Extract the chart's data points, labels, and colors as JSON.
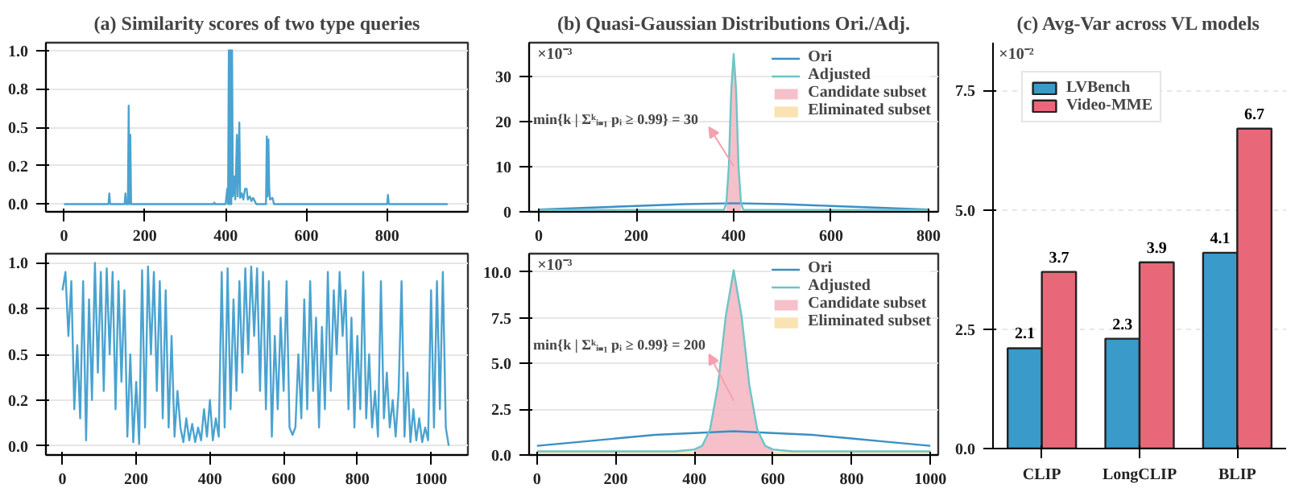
{
  "chart_data": [
    {
      "type": "line",
      "title": "(a) Similarity scores of two type queries",
      "xlim": [
        -45,
        1000
      ],
      "xticks": [
        0,
        200,
        400,
        600,
        800
      ],
      "ylim": [
        -0.05,
        1.05
      ],
      "yticks": [
        {
          "value": 0,
          "label": "0.0"
        },
        {
          "value": 0.25,
          "label": "0.2"
        },
        {
          "value": 0.5,
          "label": "0.5"
        },
        {
          "value": 0.75,
          "label": "0.8"
        },
        {
          "value": 1.0,
          "label": "1.0"
        }
      ],
      "grid": "y",
      "series": [
        {
          "color": "#4aa3d0",
          "x": [
            0,
            110,
            112,
            114,
            150,
            152,
            154,
            158,
            160,
            162,
            164,
            166,
            370,
            372,
            374,
            400,
            402,
            404,
            406,
            408,
            410,
            412,
            414,
            416,
            418,
            422,
            424,
            428,
            430,
            434,
            436,
            440,
            444,
            448,
            452,
            455,
            460,
            464,
            468,
            472,
            476,
            500,
            502,
            504,
            506,
            508,
            510,
            516,
            520,
            800,
            802,
            804,
            950
          ],
          "values": [
            0,
            0,
            0.07,
            0,
            0,
            0.07,
            0,
            0,
            0.64,
            0,
            0.45,
            0,
            0,
            0.01,
            0,
            0,
            0.05,
            0.1,
            0,
            1.0,
            0,
            1.0,
            0,
            1.0,
            0.05,
            0.18,
            0.03,
            0.45,
            0.05,
            0.53,
            0.04,
            0.07,
            0.03,
            0.1,
            0.1,
            0.03,
            0.05,
            0.02,
            0.04,
            0.02,
            0,
            0,
            0.44,
            0.05,
            0.42,
            0.1,
            0.03,
            0.04,
            0,
            0,
            0.06,
            0,
            0
          ]
        }
      ]
    },
    {
      "type": "line",
      "xlim": [
        -45,
        1100
      ],
      "xticks": [
        0,
        200,
        400,
        600,
        800,
        1000
      ],
      "ylim": [
        -0.05,
        1.05
      ],
      "yticks": [
        {
          "value": 0,
          "label": "0.0"
        },
        {
          "value": 0.25,
          "label": "0.2"
        },
        {
          "value": 0.5,
          "label": "0.5"
        },
        {
          "value": 0.75,
          "label": "0.8"
        },
        {
          "value": 1.0,
          "label": "1.0"
        }
      ],
      "grid": "y",
      "series": [
        {
          "color": "#4aa3d0",
          "x": [
            0,
            8,
            16,
            24,
            32,
            40,
            48,
            56,
            64,
            72,
            80,
            88,
            96,
            104,
            112,
            120,
            128,
            136,
            144,
            152,
            160,
            168,
            176,
            184,
            192,
            200,
            208,
            216,
            224,
            232,
            240,
            248,
            256,
            264,
            272,
            280,
            288,
            296,
            304,
            312,
            320,
            328,
            336,
            344,
            352,
            360,
            368,
            376,
            384,
            392,
            400,
            408,
            416,
            424,
            432,
            440,
            448,
            456,
            464,
            472,
            480,
            488,
            496,
            504,
            512,
            520,
            528,
            536,
            544,
            552,
            560,
            568,
            576,
            584,
            592,
            600,
            608,
            616,
            624,
            632,
            640,
            648,
            656,
            664,
            672,
            680,
            688,
            696,
            704,
            712,
            720,
            728,
            736,
            744,
            752,
            760,
            768,
            776,
            784,
            792,
            800,
            808,
            816,
            824,
            832,
            840,
            848,
            856,
            864,
            872,
            880,
            888,
            896,
            904,
            912,
            920,
            928,
            936,
            944,
            952,
            960,
            968,
            976,
            984,
            992,
            1000,
            1008,
            1016,
            1024,
            1032,
            1040,
            1048
          ],
          "values": [
            0.85,
            0.95,
            0.6,
            0.9,
            0.2,
            0.55,
            0.15,
            0.9,
            0.03,
            0.8,
            0.25,
            1.0,
            0.4,
            0.95,
            0.3,
            0.97,
            0.5,
            0.95,
            0.2,
            0.9,
            0.35,
            0.85,
            0.05,
            0.5,
            0.02,
            0.35,
            0.01,
            0.96,
            0.1,
            0.98,
            0.5,
            0.95,
            0.3,
            0.9,
            0.15,
            0.85,
            0.1,
            0.6,
            0.05,
            0.3,
            0.1,
            0.02,
            0.15,
            0.03,
            0.12,
            0.02,
            0.1,
            0.03,
            0.2,
            0.05,
            0.25,
            0.03,
            0.15,
            0.05,
            0.95,
            0.1,
            0.97,
            0.2,
            0.8,
            0.3,
            0.9,
            0.4,
            0.97,
            0.5,
            0.98,
            0.6,
            0.97,
            0.3,
            0.95,
            0.2,
            0.9,
            0.05,
            0.6,
            0.2,
            0.7,
            0.3,
            0.9,
            0.1,
            0.06,
            0.1,
            0.5,
            0.15,
            0.8,
            0.2,
            0.9,
            0.3,
            0.7,
            0.1,
            0.65,
            0.2,
            0.95,
            0.3,
            0.85,
            0.5,
            0.95,
            0.6,
            0.85,
            0.2,
            0.7,
            0.1,
            0.6,
            0.2,
            0.95,
            0.15,
            0.5,
            0.1,
            0.3,
            0.05,
            0.9,
            0.15,
            0.4,
            0.1,
            0.25,
            0.05,
            0.3,
            0.9,
            0.05,
            0.4,
            0.02,
            0.2,
            0.03,
            0.15,
            0.02,
            0.1,
            0.03,
            0.85,
            0.1,
            0.9,
            0.2,
            0.95,
            0.1,
            0.0
          ]
        }
      ]
    },
    {
      "type": "line",
      "title": "(b) Quasi-Gaussian Distributions Ori./Adj.",
      "xlim": [
        -20,
        820
      ],
      "xticks": [
        0,
        200,
        400,
        600,
        800
      ],
      "ylim": [
        0,
        37.5
      ],
      "yticks": [
        0,
        10,
        20,
        30
      ],
      "grid": "y",
      "legend": "top right",
      "annotations": [
        "×10⁻³",
        "min{k | Σᵏᵢ₌₁ pᵢ ≥ 0.99} = 30"
      ],
      "series": [
        {
          "name": "Ori",
          "type": "line",
          "color": "#3b8fc4",
          "x": [
            0,
            100,
            200,
            300,
            400,
            500,
            600,
            700,
            800
          ],
          "values": [
            0.5,
            0.9,
            1.3,
            1.7,
            1.9,
            1.7,
            1.3,
            0.9,
            0.5
          ]
        },
        {
          "name": "Adjusted",
          "type": "line",
          "color": "#6ec4c7",
          "x": [
            0,
            380,
            385,
            390,
            395,
            400,
            405,
            410,
            415,
            420,
            800
          ],
          "values": [
            0.4,
            0.4,
            2,
            10,
            27,
            35,
            27,
            10,
            2,
            0.4,
            0.4
          ]
        },
        {
          "name": "Candidate subset",
          "type": "area",
          "color": "#f4b9c3",
          "x": [
            385,
            390,
            395,
            400,
            405,
            410,
            415
          ],
          "values": [
            2,
            10,
            27,
            35,
            27,
            10,
            2
          ]
        },
        {
          "name": "Eliminated subset",
          "type": "area",
          "color": "#f9e2b1",
          "x": [
            0,
            385,
            400,
            415,
            800
          ],
          "values": [
            0.4,
            0.4,
            null,
            0.4,
            0.4
          ]
        }
      ]
    },
    {
      "type": "line",
      "xlim": [
        -20,
        1020
      ],
      "xticks": [
        0,
        200,
        400,
        600,
        800,
        1000
      ],
      "ylim": [
        0,
        11
      ],
      "yticks": [
        {
          "value": 0,
          "label": "0.0"
        },
        {
          "value": 2.5,
          "label": "2.5"
        },
        {
          "value": 5,
          "label": "5.0"
        },
        {
          "value": 7.5,
          "label": "7.5"
        },
        {
          "value": 10,
          "label": "10.0"
        }
      ],
      "grid": "y",
      "legend": "top right",
      "annotations": [
        "×10⁻³",
        "min{k | Σᵏᵢ₌₁ pᵢ ≥ 0.99} = 200"
      ],
      "series": [
        {
          "name": "Ori",
          "type": "line",
          "color": "#3b8fc4",
          "x": [
            0,
            100,
            200,
            300,
            400,
            500,
            600,
            700,
            800,
            900,
            1000
          ],
          "values": [
            0.5,
            0.7,
            0.9,
            1.1,
            1.2,
            1.3,
            1.2,
            1.1,
            0.9,
            0.7,
            0.5
          ]
        },
        {
          "name": "Adjusted",
          "type": "line",
          "color": "#6ec4c7",
          "x": [
            0,
            350,
            400,
            420,
            440,
            460,
            480,
            500,
            520,
            540,
            560,
            580,
            600,
            650,
            1000
          ],
          "values": [
            0.2,
            0.2,
            0.3,
            0.5,
            1.4,
            3.8,
            7.6,
            10.1,
            7.6,
            3.8,
            1.4,
            0.5,
            0.3,
            0.2,
            0.2
          ]
        },
        {
          "name": "Candidate subset",
          "type": "area",
          "color": "#f4b9c3",
          "x": [
            400,
            420,
            440,
            460,
            480,
            500,
            520,
            540,
            560,
            580,
            600
          ],
          "values": [
            0.3,
            0.5,
            1.4,
            3.8,
            7.6,
            10.1,
            7.6,
            3.8,
            1.4,
            0.5,
            0.3
          ]
        },
        {
          "name": "Eliminated subset",
          "type": "area",
          "color": "#f9e2b1",
          "x": [
            0,
            400,
            500,
            600,
            1000
          ],
          "values": [
            0.2,
            0.2,
            null,
            0.2,
            0.2
          ]
        }
      ]
    },
    {
      "type": "bar",
      "title": "(c) Avg-Var across VL models",
      "categories": [
        "CLIP",
        "LongCLIP",
        "BLIP"
      ],
      "ylim": [
        0,
        8.5
      ],
      "yticks": [
        {
          "value": 0,
          "label": "0.0"
        },
        {
          "value": 2.5,
          "label": "2.5"
        },
        {
          "value": 5,
          "label": "5.0"
        },
        {
          "value": 7.5,
          "label": "7.5"
        }
      ],
      "grid": "y",
      "legend": "top left",
      "data_labels": true,
      "annotations": [
        "×10⁻²"
      ],
      "series": [
        {
          "name": "LVBench",
          "color": "#3a9ac9",
          "values": [
            2.1,
            2.3,
            4.1
          ]
        },
        {
          "name": "Video-MME",
          "color": "#e8687a",
          "values": [
            3.7,
            3.9,
            6.7
          ]
        }
      ]
    }
  ]
}
